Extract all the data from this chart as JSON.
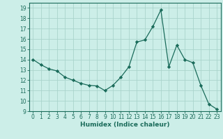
{
  "x": [
    0,
    1,
    2,
    3,
    4,
    5,
    6,
    7,
    8,
    9,
    10,
    11,
    12,
    13,
    14,
    15,
    16,
    17,
    18,
    19,
    20,
    21,
    22,
    23
  ],
  "y": [
    14.0,
    13.5,
    13.1,
    12.9,
    12.3,
    12.0,
    11.7,
    11.5,
    11.45,
    11.0,
    11.5,
    12.3,
    13.3,
    15.7,
    15.9,
    17.2,
    18.8,
    13.3,
    15.4,
    14.0,
    13.7,
    11.5,
    9.7,
    9.2
  ],
  "line_color": "#1a6b5a",
  "marker": "D",
  "marker_size": 2.2,
  "linewidth": 0.9,
  "bg_color": "#cceee8",
  "grid_color": "#aad4cc",
  "xlabel": "Humidex (Indice chaleur)",
  "xlabel_fontsize": 6.5,
  "xlim": [
    -0.5,
    23.5
  ],
  "ylim": [
    9,
    19.5
  ],
  "yticks": [
    9,
    10,
    11,
    12,
    13,
    14,
    15,
    16,
    17,
    18,
    19
  ],
  "xticks": [
    0,
    1,
    2,
    3,
    4,
    5,
    6,
    7,
    8,
    9,
    10,
    11,
    12,
    13,
    14,
    15,
    16,
    17,
    18,
    19,
    20,
    21,
    22,
    23
  ],
  "tick_fontsize": 5.5,
  "tick_color": "#1a6b5a",
  "axis_color": "#1a6b5a"
}
